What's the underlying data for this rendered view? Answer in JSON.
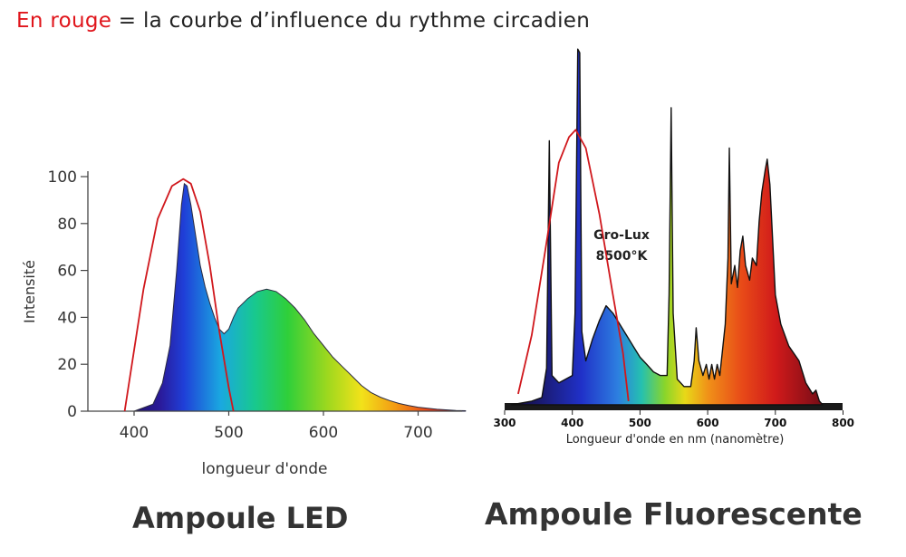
{
  "header": {
    "highlight": "En rouge",
    "rest": " = la courbe d’influence du rythme circadien",
    "highlight_color": "#e0151b"
  },
  "captions": {
    "left": "Ampoule LED",
    "right": "Ampoule Fluorescente"
  },
  "chart_data": [
    {
      "type": "area",
      "ylabel": "Intensité",
      "xlabel": "longueur d'onde",
      "xlim": [
        360,
        750
      ],
      "ylim": [
        0,
        100
      ],
      "xticks": [
        400,
        500,
        600,
        700
      ],
      "yticks": [
        0,
        20,
        40,
        60,
        80,
        100
      ],
      "series": [
        {
          "values": [
            [
              360,
              0
            ],
            [
              400,
              0
            ],
            [
              420,
              3
            ],
            [
              430,
              12
            ],
            [
              438,
              28
            ],
            [
              445,
              60
            ],
            [
              450,
              88
            ],
            [
              453,
              97
            ],
            [
              456,
              96
            ],
            [
              460,
              88
            ],
            [
              465,
              75
            ],
            [
              470,
              62
            ],
            [
              475,
              53
            ],
            [
              480,
              46
            ],
            [
              485,
              40
            ],
            [
              490,
              35
            ],
            [
              495,
              33
            ],
            [
              500,
              35
            ],
            [
              505,
              40
            ],
            [
              510,
              44
            ],
            [
              520,
              48
            ],
            [
              530,
              51
            ],
            [
              540,
              52
            ],
            [
              550,
              51
            ],
            [
              560,
              48
            ],
            [
              570,
              44
            ],
            [
              580,
              39
            ],
            [
              590,
              33
            ],
            [
              600,
              28
            ],
            [
              610,
              23
            ],
            [
              620,
              19
            ],
            [
              630,
              15
            ],
            [
              640,
              11
            ],
            [
              650,
              8
            ],
            [
              660,
              6
            ],
            [
              670,
              4.5
            ],
            [
              680,
              3.3
            ],
            [
              690,
              2.4
            ],
            [
              700,
              1.7
            ],
            [
              720,
              0.8
            ],
            [
              740,
              0.3
            ],
            [
              750,
              0.2
            ]
          ]
        }
      ],
      "overlay_curve": {
        "color": "#d0171c",
        "values": [
          [
            390,
            0
          ],
          [
            410,
            52
          ],
          [
            425,
            82
          ],
          [
            440,
            96
          ],
          [
            452,
            99
          ],
          [
            460,
            97
          ],
          [
            470,
            85
          ],
          [
            480,
            62
          ],
          [
            490,
            34
          ],
          [
            500,
            10
          ],
          [
            505,
            0
          ]
        ]
      }
    },
    {
      "type": "area",
      "xlabel": "Longueur d'onde en nm (nanomètre)",
      "xlim": [
        300,
        800
      ],
      "xticks": [
        300,
        400,
        500,
        600,
        700,
        800
      ],
      "annotation": [
        "Gro-Lux",
        "8500°K"
      ],
      "series": [
        {
          "values": [
            [
              310,
              0
            ],
            [
              340,
              1
            ],
            [
              355,
              2
            ],
            [
              362,
              10
            ],
            [
              366,
              72
            ],
            [
              370,
              8
            ],
            [
              380,
              6
            ],
            [
              400,
              8
            ],
            [
              404,
              25
            ],
            [
              408,
              97
            ],
            [
              411,
              96
            ],
            [
              414,
              20
            ],
            [
              420,
              12
            ],
            [
              430,
              18
            ],
            [
              440,
              23
            ],
            [
              450,
              27
            ],
            [
              460,
              25
            ],
            [
              470,
              22
            ],
            [
              480,
              19
            ],
            [
              490,
              16
            ],
            [
              500,
              13
            ],
            [
              510,
              11
            ],
            [
              520,
              9
            ],
            [
              530,
              8
            ],
            [
              540,
              8
            ],
            [
              543,
              30
            ],
            [
              546,
              81
            ],
            [
              549,
              25
            ],
            [
              555,
              7
            ],
            [
              565,
              5
            ],
            [
              575,
              5
            ],
            [
              580,
              12
            ],
            [
              583,
              21
            ],
            [
              587,
              12
            ],
            [
              593,
              8
            ],
            [
              598,
              11
            ],
            [
              602,
              7
            ],
            [
              606,
              11
            ],
            [
              610,
              7
            ],
            [
              614,
              11
            ],
            [
              618,
              8
            ],
            [
              626,
              22
            ],
            [
              630,
              40
            ],
            [
              632,
              70
            ],
            [
              635,
              33
            ],
            [
              640,
              38
            ],
            [
              644,
              32
            ],
            [
              648,
              42
            ],
            [
              652,
              46
            ],
            [
              656,
              38
            ],
            [
              662,
              34
            ],
            [
              666,
              40
            ],
            [
              672,
              38
            ],
            [
              676,
              50
            ],
            [
              680,
              58
            ],
            [
              685,
              64
            ],
            [
              688,
              67
            ],
            [
              692,
              60
            ],
            [
              696,
              45
            ],
            [
              700,
              30
            ],
            [
              708,
              22
            ],
            [
              720,
              16
            ],
            [
              735,
              12
            ],
            [
              745,
              6
            ],
            [
              755,
              3
            ],
            [
              760,
              4
            ],
            [
              765,
              1
            ],
            [
              770,
              0
            ]
          ]
        }
      ],
      "overlay_curve": {
        "color": "#d0171c",
        "values": [
          [
            320,
            3
          ],
          [
            340,
            19
          ],
          [
            360,
            42
          ],
          [
            380,
            66
          ],
          [
            395,
            73
          ],
          [
            405,
            75
          ],
          [
            420,
            70
          ],
          [
            440,
            52
          ],
          [
            460,
            30
          ],
          [
            475,
            14
          ],
          [
            483,
            1
          ]
        ]
      }
    }
  ]
}
